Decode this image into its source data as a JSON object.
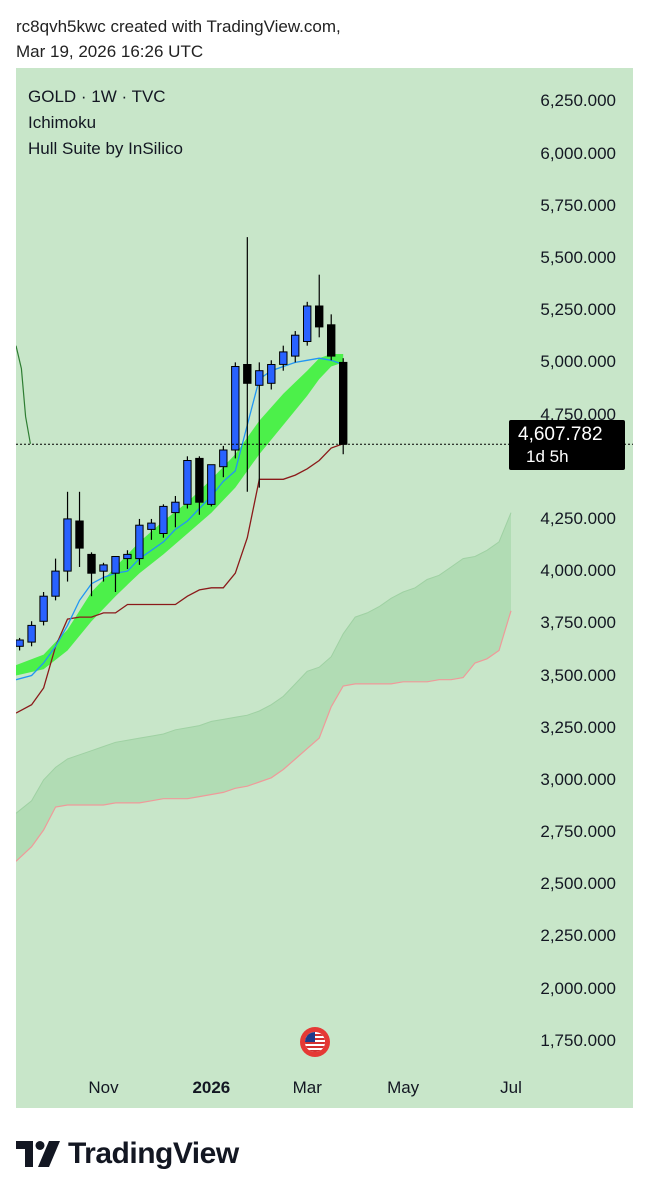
{
  "header": {
    "line1": "rc8qvh5kwc created with TradingView.com,",
    "line2": "Mar 19, 2026 16:26 UTC"
  },
  "legend": {
    "symbol": "GOLD · 1W · TVC",
    "indicator1": "Ichimoku",
    "indicator2": "Hull Suite by InSilico"
  },
  "price_box": {
    "price": "4,607.782",
    "countdown": "1d 5h"
  },
  "logo": {
    "text": "TradingView",
    "icon": "tradingview-logo-icon"
  },
  "event_icon": "us-flag-icon",
  "colors": {
    "background": "#c8e6c9",
    "bull_candle": "#2962ff",
    "bear_candle": "#000000",
    "hull_band": "#4cf04a",
    "base_line": "#8b1a1a",
    "conversion_line": "#2196f3",
    "cloud": "#a9d8ac",
    "span_b": "#ef9a9a",
    "lagging": "#2e7d32"
  },
  "chart_data": {
    "type": "candlestick",
    "symbol": "GOLD",
    "timeframe": "1W",
    "y_axis_ticks": [
      "6,250.000",
      "6,000.000",
      "5,750.000",
      "5,500.000",
      "5,250.000",
      "5,000.000",
      "4,750.000",
      "4,250.000",
      "4,000.000",
      "3,750.000",
      "3,500.000",
      "3,250.000",
      "3,000.000",
      "2,750.000",
      "2,500.000",
      "2,250.000",
      "2,000.000",
      "1,750.000"
    ],
    "y_tick_values": [
      6250,
      6000,
      5750,
      5500,
      5250,
      5000,
      4750,
      4250,
      4000,
      3750,
      3500,
      3250,
      3000,
      2750,
      2500,
      2250,
      2000,
      1750
    ],
    "ylim": [
      1620,
      6410
    ],
    "x_axis_labels": [
      {
        "label": "Nov",
        "bold": false,
        "index": 7
      },
      {
        "label": "2026",
        "bold": true,
        "index": 16
      },
      {
        "label": "Mar",
        "bold": false,
        "index": 24
      },
      {
        "label": "May",
        "bold": false,
        "index": 32
      },
      {
        "label": "Jul",
        "bold": false,
        "index": 41
      }
    ],
    "xlim": [
      -0.3,
      41
    ],
    "candles": [
      {
        "o": 3640,
        "h": 3680,
        "l": 3620,
        "c": 3670
      },
      {
        "o": 3660,
        "h": 3760,
        "l": 3640,
        "c": 3740
      },
      {
        "o": 3760,
        "h": 3900,
        "l": 3740,
        "c": 3880
      },
      {
        "o": 3880,
        "h": 4060,
        "l": 3860,
        "c": 4000
      },
      {
        "o": 4000,
        "h": 4380,
        "l": 3950,
        "c": 4250
      },
      {
        "o": 4240,
        "h": 4380,
        "l": 4020,
        "c": 4110
      },
      {
        "o": 4080,
        "h": 4090,
        "l": 3880,
        "c": 3990
      },
      {
        "o": 4000,
        "h": 4040,
        "l": 3950,
        "c": 4030
      },
      {
        "o": 3990,
        "h": 4050,
        "l": 3900,
        "c": 4070
      },
      {
        "o": 4060,
        "h": 4100,
        "l": 4010,
        "c": 4080
      },
      {
        "o": 4060,
        "h": 4250,
        "l": 4030,
        "c": 4220
      },
      {
        "o": 4200,
        "h": 4250,
        "l": 4150,
        "c": 4230
      },
      {
        "o": 4180,
        "h": 4320,
        "l": 4160,
        "c": 4310
      },
      {
        "o": 4280,
        "h": 4360,
        "l": 4210,
        "c": 4330
      },
      {
        "o": 4320,
        "h": 4550,
        "l": 4300,
        "c": 4530
      },
      {
        "o": 4540,
        "h": 4550,
        "l": 4270,
        "c": 4330
      },
      {
        "o": 4320,
        "h": 4500,
        "l": 4310,
        "c": 4510
      },
      {
        "o": 4500,
        "h": 4600,
        "l": 4450,
        "c": 4580
      },
      {
        "o": 4580,
        "h": 5000,
        "l": 4540,
        "c": 4980
      },
      {
        "o": 4990,
        "h": 5600,
        "l": 4380,
        "c": 4900
      },
      {
        "o": 4890,
        "h": 5000,
        "l": 4400,
        "c": 4960
      },
      {
        "o": 4900,
        "h": 5010,
        "l": 4870,
        "c": 4990
      },
      {
        "o": 4990,
        "h": 5080,
        "l": 4960,
        "c": 5050
      },
      {
        "o": 5030,
        "h": 5150,
        "l": 5000,
        "c": 5130
      },
      {
        "o": 5100,
        "h": 5290,
        "l": 5080,
        "c": 5270
      },
      {
        "o": 5270,
        "h": 5420,
        "l": 5120,
        "c": 5170
      },
      {
        "o": 5180,
        "h": 5230,
        "l": 5010,
        "c": 5030
      },
      {
        "o": 5000,
        "h": 5020,
        "l": 4560,
        "c": 4607.782
      }
    ],
    "hull_upper": [
      [
        -0.3,
        3550
      ],
      [
        2,
        3600
      ],
      [
        4,
        3720
      ],
      [
        6,
        3900
      ],
      [
        8,
        4020
      ],
      [
        10,
        4140
      ],
      [
        12,
        4240
      ],
      [
        14,
        4330
      ],
      [
        16,
        4440
      ],
      [
        18,
        4560
      ],
      [
        20,
        4720
      ],
      [
        22,
        4850
      ],
      [
        24,
        4960
      ],
      [
        25,
        5020
      ],
      [
        26,
        5040
      ],
      [
        27,
        5040
      ]
    ],
    "hull_lower": [
      [
        -0.3,
        3500
      ],
      [
        2,
        3530
      ],
      [
        4,
        3620
      ],
      [
        6,
        3760
      ],
      [
        8,
        3880
      ],
      [
        10,
        3990
      ],
      [
        12,
        4080
      ],
      [
        14,
        4180
      ],
      [
        16,
        4280
      ],
      [
        18,
        4400
      ],
      [
        20,
        4560
      ],
      [
        22,
        4700
      ],
      [
        24,
        4840
      ],
      [
        25,
        4920
      ],
      [
        26,
        4980
      ],
      [
        27,
        5000
      ]
    ],
    "conversion_line": [
      [
        -0.3,
        3480
      ],
      [
        1,
        3500
      ],
      [
        2,
        3560
      ],
      [
        3,
        3640
      ],
      [
        4,
        3740
      ],
      [
        5,
        3860
      ],
      [
        6,
        3940
      ],
      [
        7,
        3970
      ],
      [
        8,
        3990
      ],
      [
        9,
        4000
      ],
      [
        10,
        4060
      ],
      [
        11,
        4100
      ],
      [
        12,
        4140
      ],
      [
        13,
        4200
      ],
      [
        14,
        4240
      ],
      [
        15,
        4300
      ],
      [
        16,
        4360
      ],
      [
        17,
        4430
      ],
      [
        18,
        4480
      ],
      [
        19,
        4700
      ],
      [
        20,
        4920
      ],
      [
        21,
        4960
      ],
      [
        22,
        4980
      ],
      [
        23,
        5000
      ],
      [
        24,
        5010
      ],
      [
        25,
        5020
      ],
      [
        26,
        5010
      ],
      [
        27,
        4990
      ]
    ],
    "base_line": [
      [
        -0.3,
        3320
      ],
      [
        1,
        3360
      ],
      [
        2,
        3440
      ],
      [
        3,
        3640
      ],
      [
        4,
        3770
      ],
      [
        5,
        3780
      ],
      [
        6,
        3780
      ],
      [
        7,
        3800
      ],
      [
        8,
        3800
      ],
      [
        9,
        3840
      ],
      [
        10,
        3840
      ],
      [
        11,
        3840
      ],
      [
        12,
        3840
      ],
      [
        13,
        3840
      ],
      [
        14,
        3880
      ],
      [
        15,
        3910
      ],
      [
        16,
        3920
      ],
      [
        17,
        3920
      ],
      [
        18,
        3990
      ],
      [
        19,
        4160
      ],
      [
        20,
        4440
      ],
      [
        21,
        4440
      ],
      [
        22,
        4440
      ],
      [
        23,
        4460
      ],
      [
        24,
        4490
      ],
      [
        25,
        4530
      ],
      [
        26,
        4590
      ],
      [
        27,
        4610
      ]
    ],
    "lagging_span": [
      [
        -0.3,
        5080
      ],
      [
        0.15,
        4970
      ],
      [
        0.5,
        4740
      ],
      [
        0.9,
        4610
      ]
    ],
    "span_a": [
      [
        -0.3,
        2840
      ],
      [
        1,
        2900
      ],
      [
        2,
        3000
      ],
      [
        3,
        3060
      ],
      [
        4,
        3100
      ],
      [
        5,
        3120
      ],
      [
        6,
        3140
      ],
      [
        7,
        3160
      ],
      [
        8,
        3180
      ],
      [
        9,
        3190
      ],
      [
        10,
        3200
      ],
      [
        11,
        3210
      ],
      [
        12,
        3220
      ],
      [
        13,
        3240
      ],
      [
        14,
        3250
      ],
      [
        15,
        3260
      ],
      [
        16,
        3280
      ],
      [
        17,
        3290
      ],
      [
        18,
        3300
      ],
      [
        19,
        3310
      ],
      [
        20,
        3330
      ],
      [
        21,
        3360
      ],
      [
        22,
        3400
      ],
      [
        23,
        3460
      ],
      [
        24,
        3520
      ],
      [
        25,
        3540
      ],
      [
        26,
        3590
      ],
      [
        27,
        3700
      ],
      [
        28,
        3780
      ],
      [
        29,
        3800
      ],
      [
        30,
        3830
      ],
      [
        31,
        3870
      ],
      [
        32,
        3900
      ],
      [
        33,
        3920
      ],
      [
        34,
        3960
      ],
      [
        35,
        3980
      ],
      [
        36,
        4020
      ],
      [
        37,
        4060
      ],
      [
        38,
        4070
      ],
      [
        39,
        4100
      ],
      [
        40,
        4140
      ],
      [
        41,
        4280
      ]
    ],
    "span_b": [
      [
        -0.3,
        2610
      ],
      [
        1,
        2680
      ],
      [
        2,
        2760
      ],
      [
        3,
        2870
      ],
      [
        4,
        2880
      ],
      [
        5,
        2880
      ],
      [
        6,
        2880
      ],
      [
        7,
        2880
      ],
      [
        8,
        2890
      ],
      [
        9,
        2890
      ],
      [
        10,
        2890
      ],
      [
        11,
        2900
      ],
      [
        12,
        2910
      ],
      [
        13,
        2910
      ],
      [
        14,
        2910
      ],
      [
        15,
        2920
      ],
      [
        16,
        2930
      ],
      [
        17,
        2940
      ],
      [
        18,
        2960
      ],
      [
        19,
        2970
      ],
      [
        20,
        2990
      ],
      [
        21,
        3010
      ],
      [
        22,
        3050
      ],
      [
        23,
        3100
      ],
      [
        24,
        3150
      ],
      [
        25,
        3200
      ],
      [
        26,
        3350
      ],
      [
        27,
        3450
      ],
      [
        28,
        3460
      ],
      [
        29,
        3460
      ],
      [
        30,
        3460
      ],
      [
        31,
        3460
      ],
      [
        32,
        3470
      ],
      [
        33,
        3470
      ],
      [
        34,
        3470
      ],
      [
        35,
        3480
      ],
      [
        36,
        3480
      ],
      [
        37,
        3490
      ],
      [
        38,
        3560
      ],
      [
        39,
        3580
      ],
      [
        40,
        3620
      ],
      [
        41,
        3810
      ]
    ],
    "current_price": 4607.782
  }
}
